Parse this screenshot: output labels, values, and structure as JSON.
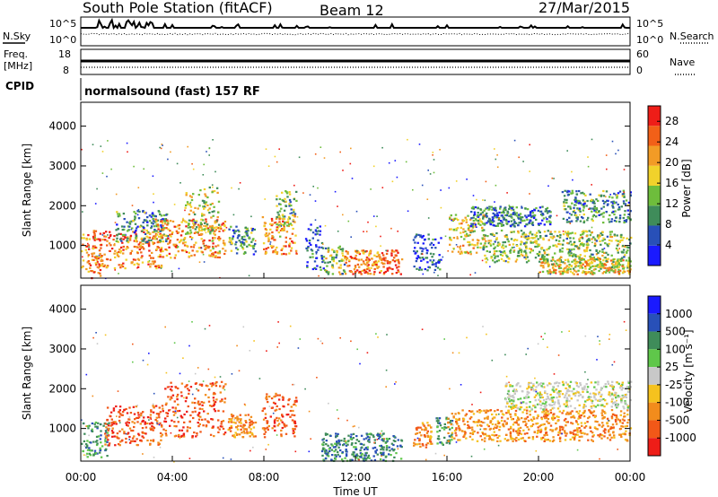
{
  "header": {
    "station": "South Pole Station (fitACF)",
    "beam": "Beam 12",
    "date": "27/Mar/2015"
  },
  "aux_panels": {
    "nsky_label": "N.Sky",
    "nsearch_label": "N.Search",
    "noise_ticks": [
      "10^5",
      "10^0"
    ],
    "freq_label": "Freq.",
    "freq_unit": "[MHz]",
    "freq_ticks": [
      "18",
      "8"
    ],
    "nave_label": "Nave",
    "nave_ticks": [
      "60",
      "0"
    ],
    "cpid_label": "CPID",
    "cpid_text": "normalsound (fast) 157 RF"
  },
  "chart_data": [
    {
      "type": "heatmap",
      "title": "",
      "panel": "power",
      "xlabel": "Time UT",
      "ylabel": "Slant Range [km]",
      "xlim": [
        "00:00",
        "24:00"
      ],
      "ylim": [
        180,
        4600
      ],
      "x_ticks": [
        "00:00",
        "04:00",
        "08:00",
        "12:00",
        "16:00",
        "20:00",
        "00:00"
      ],
      "y_ticks": [
        1000,
        2000,
        3000,
        4000
      ],
      "colorbar": {
        "label": "Power [dB]",
        "ticks": [
          4,
          8,
          12,
          16,
          20,
          24,
          28
        ],
        "range": [
          0,
          31
        ],
        "colors": [
          "#1a1aff",
          "#2850b8",
          "#3f8c5a",
          "#6ebd3c",
          "#f1d22b",
          "#f29b26",
          "#f26018",
          "#ee1d18"
        ]
      },
      "regions": [
        {
          "t0": 0.0,
          "t1": 0.9,
          "r0": 200,
          "r1": 1300,
          "level": 22
        },
        {
          "t0": 0.5,
          "t1": 3.5,
          "r0": 450,
          "r1": 1400,
          "level": 24
        },
        {
          "t0": 1.5,
          "t1": 3.8,
          "r0": 1100,
          "r1": 1900,
          "level": 10
        },
        {
          "t0": 3.2,
          "t1": 6.3,
          "r0": 700,
          "r1": 1700,
          "level": 22
        },
        {
          "t0": 4.5,
          "t1": 6.0,
          "r0": 1300,
          "r1": 2500,
          "level": 16
        },
        {
          "t0": 6.4,
          "t1": 7.6,
          "r0": 800,
          "r1": 1500,
          "level": 10
        },
        {
          "t0": 7.9,
          "t1": 9.4,
          "r0": 800,
          "r1": 1800,
          "level": 22
        },
        {
          "t0": 8.5,
          "t1": 9.4,
          "r0": 1500,
          "r1": 2400,
          "level": 12
        },
        {
          "t0": 9.8,
          "t1": 10.6,
          "r0": 400,
          "r1": 1600,
          "level": 6
        },
        {
          "t0": 10.6,
          "t1": 11.5,
          "r0": 300,
          "r1": 1000,
          "level": 14
        },
        {
          "t0": 11.5,
          "t1": 14.0,
          "r0": 300,
          "r1": 900,
          "level": 24
        },
        {
          "t0": 14.5,
          "t1": 15.7,
          "r0": 400,
          "r1": 1300,
          "level": 5
        },
        {
          "t0": 16.0,
          "t1": 17.6,
          "r0": 800,
          "r1": 1800,
          "level": 18
        },
        {
          "t0": 17.0,
          "t1": 20.5,
          "r0": 1500,
          "r1": 2000,
          "level": 8
        },
        {
          "t0": 17.5,
          "t1": 24.0,
          "r0": 600,
          "r1": 1400,
          "level": 14
        },
        {
          "t0": 21.0,
          "t1": 24.0,
          "r0": 1600,
          "r1": 2400,
          "level": 10
        },
        {
          "t0": 20.0,
          "t1": 24.0,
          "r0": 300,
          "r1": 700,
          "level": 18
        }
      ]
    },
    {
      "type": "heatmap",
      "title": "",
      "panel": "velocity",
      "xlabel": "Time UT",
      "ylabel": "Slant Range [km]",
      "xlim": [
        "00:00",
        "24:00"
      ],
      "ylim": [
        180,
        4600
      ],
      "x_ticks": [
        "00:00",
        "04:00",
        "08:00",
        "12:00",
        "16:00",
        "20:00",
        "00:00"
      ],
      "y_ticks": [
        1000,
        2000,
        3000,
        4000
      ],
      "colorbar": {
        "label": "Velocity [m s⁻¹]",
        "ticks": [
          "1000",
          "500",
          "100",
          "25",
          "-25",
          "-100",
          "-500",
          "-1000"
        ],
        "colors": [
          "#1a1aff",
          "#2850b8",
          "#3f8c5a",
          "#5fc74a",
          "#c8c8c8",
          "#f5c21e",
          "#f28c1c",
          "#f25818",
          "#ee1d18"
        ]
      },
      "regions": [
        {
          "t0": 0.0,
          "t1": 1.2,
          "r0": 300,
          "r1": 1200,
          "bin": 2
        },
        {
          "t0": 1.0,
          "t1": 3.5,
          "r0": 600,
          "r1": 1600,
          "bin": 7
        },
        {
          "t0": 3.5,
          "t1": 6.3,
          "r0": 800,
          "r1": 2200,
          "bin": 7
        },
        {
          "t0": 6.4,
          "t1": 7.6,
          "r0": 800,
          "r1": 1400,
          "bin": 6
        },
        {
          "t0": 7.9,
          "t1": 9.4,
          "r0": 800,
          "r1": 1900,
          "bin": 7
        },
        {
          "t0": 10.5,
          "t1": 14.0,
          "r0": 200,
          "r1": 900,
          "bin": 2
        },
        {
          "t0": 14.5,
          "t1": 15.3,
          "r0": 500,
          "r1": 1200,
          "bin": 6
        },
        {
          "t0": 15.5,
          "t1": 16.2,
          "r0": 600,
          "r1": 1300,
          "bin": 2
        },
        {
          "t0": 16.0,
          "t1": 24.0,
          "r0": 700,
          "r1": 1500,
          "bin": 6
        },
        {
          "t0": 18.5,
          "t1": 24.0,
          "r0": 1500,
          "r1": 2200,
          "bin": 4
        }
      ]
    }
  ]
}
